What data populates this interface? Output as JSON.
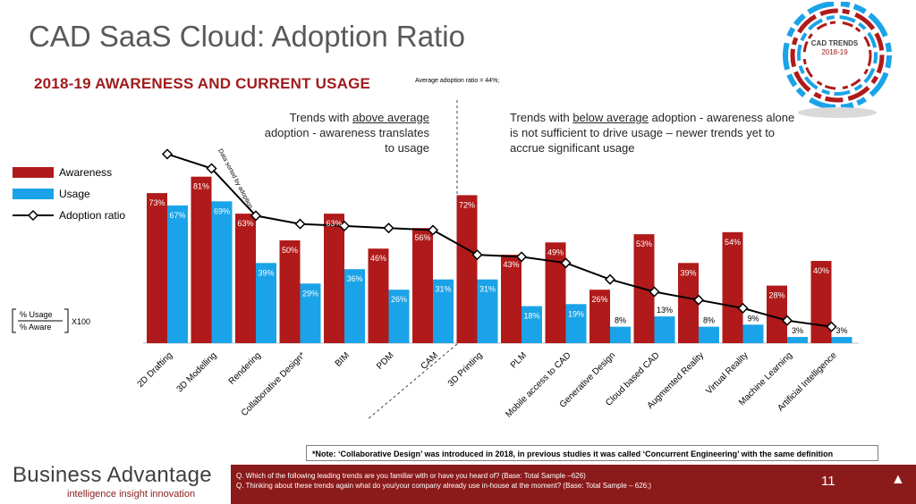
{
  "slide_title": "CAD SaaS Cloud: Adoption Ratio",
  "chart_title": "2018-19 AWARENESS AND CURRENT USAGE",
  "average_note": "Average adoption ratio = 44%;",
  "annotations": {
    "above_pre": "Trends with ",
    "above_underline": "above average",
    "above_post": " adoption - awareness translates to usage",
    "below_pre": "Trends with ",
    "below_underline": "below average",
    "below_post": " adoption - awareness alone is not sufficient to drive usage – newer trends yet to accrue significant usage",
    "sorted_note": "Data sorted by adoption"
  },
  "formula": {
    "numerator": "% Usage",
    "denominator": "% Aware",
    "multiplier": "X100"
  },
  "footnote": "*Note: ‘Collaborative Design’ was introduced in 2018, in previous studies it was called ‘Concurrent Engineering’ with the same definition",
  "footer": {
    "q1": "Q. Which of the following leading trends are you familiar with or have you heard of? (Base: Total Sample –626)",
    "q2": "Q. Thinking about these trends again what do you/your company already use in-house at the moment? (Base: Total Sample – 626;)",
    "page_number": "11",
    "nav_icon": "triangle-up-icon"
  },
  "brand": {
    "name_part1": "Business",
    "name_part2": " Advantage",
    "tagline": "intelligence insight innovation"
  },
  "logo": {
    "line1": "CAD TRENDS",
    "line2": "2018-19"
  },
  "colors": {
    "awareness": "#b01a1a",
    "usage": "#1aa3e8",
    "adoption": "#000000",
    "footer": "#8b1a1a"
  },
  "chart_data": {
    "type": "bar",
    "categories": [
      "2D Drafting",
      "3D Modelling",
      "Rendering",
      "Collaborative Design*",
      "BIM",
      "PDM",
      "CAM",
      "3D Printing",
      "PLM",
      "Mobile access to CAD",
      "Generative Design",
      "Cloud based CAD",
      "Augmented Reality",
      "Virtual Reality",
      "Machine Learning",
      "Artificial Intelligence"
    ],
    "series": [
      {
        "name": "Awareness",
        "values": [
          73,
          81,
          63,
          50,
          63,
          46,
          56,
          72,
          43,
          49,
          26,
          53,
          39,
          54,
          28,
          40
        ],
        "labels": [
          "73%",
          "81%",
          "63%",
          "50%",
          "63%",
          "46%",
          "56%",
          "72%",
          "43%",
          "49%",
          "26%",
          "53%",
          "39%",
          "54%",
          "28%",
          "40%"
        ]
      },
      {
        "name": "Usage",
        "values": [
          67,
          69,
          39,
          29,
          36,
          26,
          31,
          31,
          18,
          19,
          8,
          13,
          8,
          9,
          3,
          3
        ],
        "labels": [
          "67%",
          "69%",
          "39%",
          "29%",
          "36%",
          "26%",
          "31%",
          "31%",
          "18%",
          "19%",
          "8%",
          "13%",
          "8%",
          "9%",
          "3%",
          "3%"
        ]
      },
      {
        "name": "Adoption ratio",
        "values": [
          92,
          85,
          62,
          58,
          57,
          56,
          55,
          43,
          42,
          39,
          31,
          25,
          21,
          17,
          11,
          8
        ]
      }
    ],
    "ylim": [
      0,
      100
    ],
    "legend": [
      "Awareness",
      "Usage",
      "Adoption ratio"
    ],
    "legend_position": "left"
  }
}
